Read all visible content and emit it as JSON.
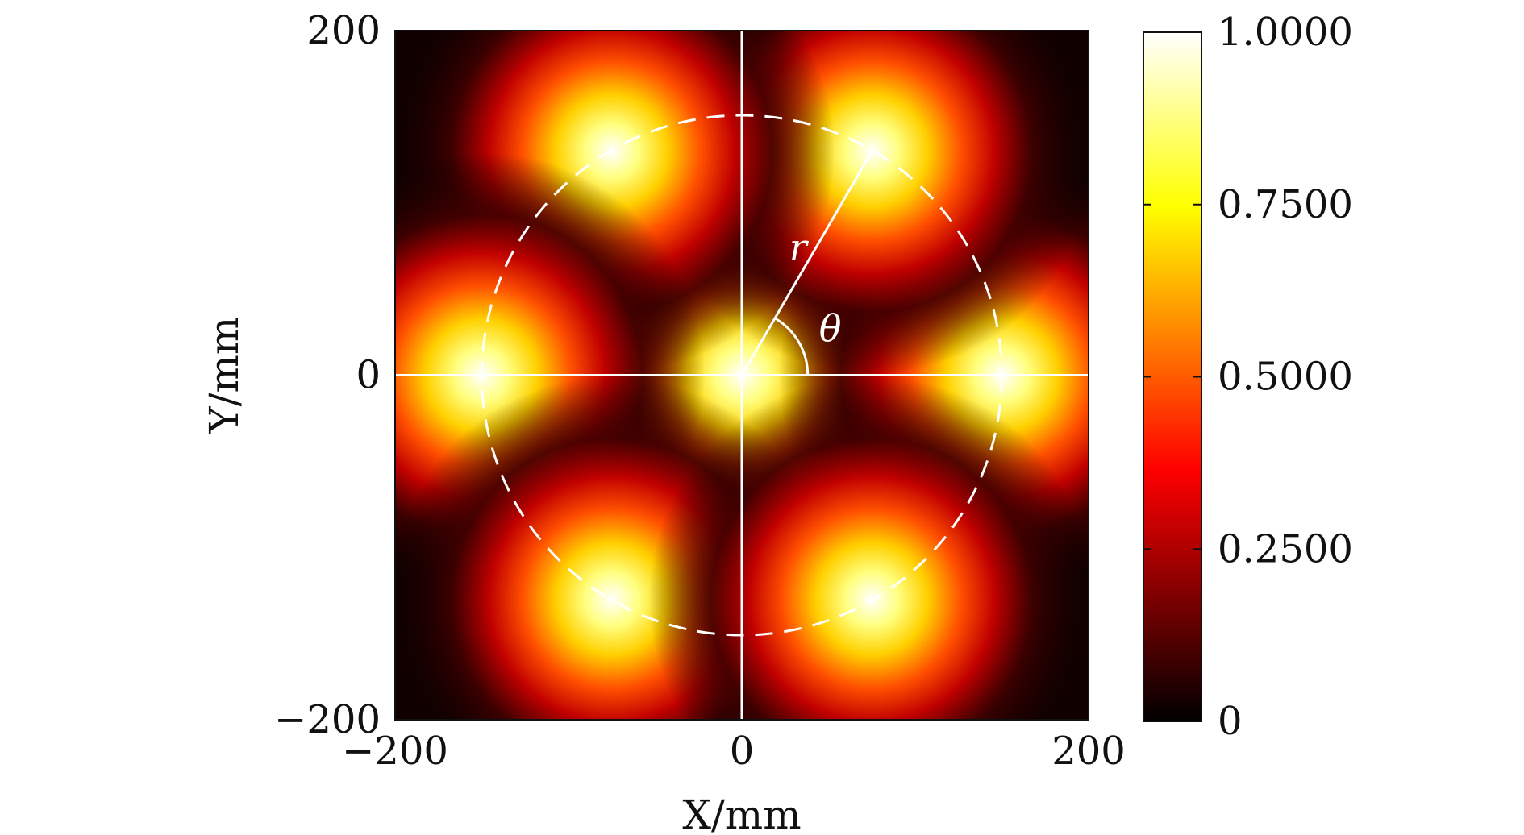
{
  "chart_data": {
    "type": "heatmap",
    "title": "",
    "xlabel": "X/mm",
    "ylabel": "Y/mm",
    "xlim": [
      -200,
      200
    ],
    "ylim": [
      -200,
      200
    ],
    "x_ticks": [
      "−200",
      "0",
      "200"
    ],
    "y_ticks": [
      "−200",
      "0",
      "200"
    ],
    "colormap": "hot",
    "colorbar": {
      "range": [
        0,
        1
      ],
      "tick_values": [
        0,
        0.25,
        0.5,
        0.75,
        1.0
      ],
      "tick_labels": [
        "0",
        "0.2500",
        "0.5000",
        "0.7500",
        "1.0000"
      ]
    },
    "beams": [
      {
        "x": 0,
        "y": 0,
        "peak": 1.0
      },
      {
        "x": 150,
        "y": 0,
        "peak": 1.0
      },
      {
        "x": 75,
        "y": 130,
        "peak": 1.0
      },
      {
        "x": -75,
        "y": 130,
        "peak": 1.0
      },
      {
        "x": -150,
        "y": 0,
        "peak": 1.0
      },
      {
        "x": -75,
        "y": -130,
        "peak": 1.0
      },
      {
        "x": 75,
        "y": -130,
        "peak": 1.0
      }
    ],
    "beam_sigma_mm": 28,
    "annotations": {
      "circle_radius_mm": 150,
      "circle_style": "dashed",
      "radius_label": "r",
      "angle_label": "θ",
      "angle_deg": 60,
      "crosshair": true
    },
    "grid": false,
    "line_color": "#ffffff"
  }
}
